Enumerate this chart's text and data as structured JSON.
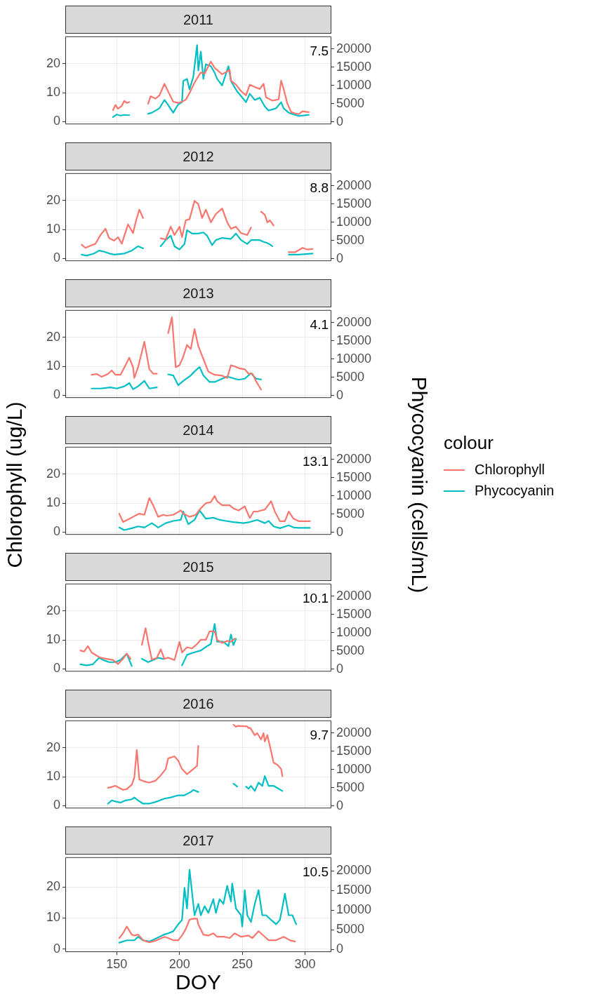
{
  "chart_data": [
    {
      "type": "line",
      "title": "2011",
      "xlim": [
        109,
        321
      ],
      "xticks": [
        150,
        200,
        250,
        300
      ],
      "ylim": [
        -0.9,
        29.5
      ],
      "yticks": [
        0,
        10,
        20
      ],
      "y2lim": [
        -700,
        23500
      ],
      "y2ticks": [
        0,
        5000,
        10000,
        15000,
        20000
      ],
      "grid": true,
      "tick_labels": "y",
      "annotations": [
        "7.5"
      ],
      "series": [
        {
          "color": "#f8766d",
          "x": [
            147,
            149,
            151,
            154,
            156,
            158,
            160,
            167,
            175,
            177,
            181,
            184,
            188,
            190,
            195,
            199,
            202,
            205,
            208,
            212,
            215,
            217,
            220,
            225,
            228,
            234,
            240,
            241,
            245,
            249,
            253,
            256,
            260,
            264,
            267,
            269,
            274,
            279,
            281,
            283,
            286,
            289,
            292,
            295,
            298,
            303
          ],
          "values": [
            4.0,
            5.8,
            4.5,
            5.5,
            7.2,
            6.5,
            6.8,
            null,
            6.2,
            8.8,
            8.0,
            9.1,
            13.1,
            11.3,
            6.9,
            6.5,
            6.9,
            7.6,
            9.9,
            13.5,
            15.7,
            17.0,
            16.6,
            20.8,
            18.6,
            16.4,
            17.9,
            14.2,
            12.8,
            10.6,
            9.1,
            12.8,
            12.0,
            11.3,
            13.1,
            8.4,
            7.3,
            7.7,
            14.2,
            11.3,
            6.2,
            3.3,
            2.9,
            2.6,
            3.6,
            3.3
          ]
        },
        {
          "color": "#00bfc4",
          "axis": "y2",
          "x": [
            147,
            150,
            153,
            156,
            160,
            167,
            175,
            178,
            184,
            188,
            190,
            195,
            199,
            202,
            203,
            206,
            208,
            211,
            214,
            215,
            217,
            219,
            221,
            225,
            228,
            230,
            234,
            239,
            241,
            246,
            249,
            253,
            256,
            260,
            264,
            268,
            271,
            277,
            281,
            283,
            287,
            292,
            295,
            303
          ],
          "values": [
            1300,
            2000,
            1700,
            1900,
            1800,
            null,
            2200,
            2500,
            3700,
            6000,
            5100,
            2500,
            4800,
            5400,
            11200,
            11800,
            8900,
            12400,
            21100,
            14100,
            19300,
            11800,
            15800,
            15300,
            13500,
            11800,
            10000,
            15300,
            11200,
            8300,
            7100,
            5400,
            7700,
            6000,
            6600,
            4200,
            3100,
            3700,
            5400,
            3700,
            2500,
            1900,
            1600,
            1900
          ]
        }
      ]
    },
    {
      "type": "line",
      "title": "2012",
      "xlim": [
        109,
        321
      ],
      "xticks": [
        150,
        200,
        250,
        300
      ],
      "ylim": [
        -0.9,
        29.5
      ],
      "yticks": [
        0,
        10,
        20
      ],
      "y2lim": [
        -700,
        23500
      ],
      "y2ticks": [
        0,
        5000,
        10000,
        15000,
        20000
      ],
      "grid": true,
      "tick_labels": "y",
      "annotations": [
        "8.8"
      ],
      "series": [
        {
          "color": "#f8766d",
          "x": [
            122,
            125,
            129,
            133,
            137,
            141,
            144,
            148,
            151,
            154,
            159,
            163,
            165,
            168,
            171,
            178,
            185,
            189,
            193,
            196,
            200,
            202,
            205,
            208,
            212,
            215,
            218,
            221,
            225,
            229,
            234,
            238,
            241,
            245,
            249,
            254,
            257,
            261,
            265,
            268,
            270,
            272,
            275,
            281,
            287,
            292,
            295,
            298,
            302,
            306
          ],
          "values": [
            4.8,
            3.7,
            4.4,
            5.1,
            8.1,
            10.3,
            7.0,
            6.2,
            7.4,
            5.1,
            11.8,
            8.8,
            12.5,
            16.9,
            14.0,
            null,
            7.0,
            6.6,
            11.0,
            8.1,
            11.0,
            7.4,
            13.2,
            13.6,
            19.9,
            18.8,
            14.0,
            16.9,
            12.5,
            15.4,
            17.3,
            12.5,
            10.3,
            11.0,
            8.8,
            8.1,
            10.7,
            null,
            16.2,
            15.1,
            12.5,
            13.2,
            11.4,
            null,
            2.2,
            2.2,
            2.9,
            3.7,
            3.1,
            3.3
          ]
        },
        {
          "color": "#00bfc4",
          "axis": "y2",
          "x": [
            122,
            126,
            132,
            136,
            140,
            144,
            148,
            151,
            156,
            162,
            167,
            171,
            178,
            185,
            189,
            193,
            196,
            200,
            204,
            206,
            210,
            215,
            219,
            222,
            226,
            229,
            234,
            241,
            245,
            249,
            254,
            257,
            264,
            267,
            269,
            272,
            274,
            281,
            287,
            295,
            306
          ],
          "values": [
            1100,
            800,
            1400,
            2200,
            1900,
            1400,
            1100,
            1200,
            1400,
            2200,
            3400,
            2800,
            null,
            3400,
            5100,
            6300,
            3400,
            2500,
            4000,
            7800,
            6900,
            6900,
            7200,
            6300,
            3700,
            5100,
            5700,
            5400,
            6900,
            5100,
            4000,
            5100,
            5100,
            4600,
            4400,
            3900,
            3400,
            null,
            1100,
            1100,
            1400
          ]
        }
      ]
    },
    {
      "type": "line",
      "title": "2013",
      "xlim": [
        109,
        321
      ],
      "xticks": [
        150,
        200,
        250,
        300
      ],
      "ylim": [
        -0.9,
        29.5
      ],
      "yticks": [
        0,
        10,
        20
      ],
      "y2lim": [
        -700,
        23500
      ],
      "y2ticks": [
        0,
        5000,
        10000,
        15000,
        20000
      ],
      "grid": true,
      "tick_labels": "y",
      "annotations": [
        "4.1"
      ],
      "series": [
        {
          "color": "#f8766d",
          "x": [
            130,
            134,
            138,
            143,
            146,
            149,
            153,
            157,
            160,
            163,
            164,
            167,
            172,
            176,
            179,
            182,
            187,
            191,
            194,
            197,
            200,
            203,
            206,
            209,
            212,
            215,
            219,
            223,
            228,
            234,
            238,
            241,
            244,
            248,
            252,
            255,
            258,
            261,
            265
          ],
          "values": [
            7.1,
            7.4,
            6.4,
            7.4,
            8.6,
            7.1,
            7.1,
            10.4,
            13.0,
            9.7,
            6.0,
            9.7,
            18.5,
            9.0,
            7.5,
            7.5,
            null,
            21.5,
            27.0,
            9.7,
            10.4,
            13.4,
            17.4,
            16.0,
            22.9,
            17.0,
            12.6,
            8.2,
            7.1,
            6.8,
            6.0,
            10.4,
            10.0,
            9.3,
            9.0,
            7.5,
            7.5,
            4.9,
            2.0
          ]
        },
        {
          "color": "#00bfc4",
          "axis": "y2",
          "x": [
            130,
            137,
            145,
            150,
            156,
            160,
            163,
            167,
            172,
            176,
            182,
            187,
            191,
            195,
            199,
            203,
            209,
            212,
            216,
            219,
            224,
            228,
            234,
            238,
            241,
            247,
            252,
            257,
            261,
            265
          ],
          "values": [
            1900,
            1900,
            2200,
            1900,
            2500,
            3400,
            1700,
            2500,
            4000,
            1900,
            2200,
            null,
            5800,
            5500,
            2800,
            4000,
            5500,
            6600,
            7800,
            5500,
            3700,
            3700,
            4600,
            5200,
            4900,
            4300,
            4600,
            6100,
            4600,
            4400
          ]
        }
      ]
    },
    {
      "type": "line",
      "title": "2014",
      "xlim": [
        109,
        321
      ],
      "xticks": [
        150,
        200,
        250,
        300
      ],
      "ylim": [
        -0.9,
        29.5
      ],
      "yticks": [
        0,
        10,
        20
      ],
      "y2lim": [
        -700,
        23500
      ],
      "y2ticks": [
        0,
        5000,
        10000,
        15000,
        20000
      ],
      "grid": true,
      "tick_labels": "y",
      "annotations": [
        "13.1"
      ],
      "ylabel": "Chlorophyll (ug/L)",
      "y2label": "Phycocyanin (cells/mL)",
      "legend": "right",
      "legend_title": "colour",
      "series": [
        {
          "name": "Chlorophyll",
          "color": "#f8766d",
          "x": [
            152,
            155,
            160,
            163,
            168,
            172,
            176,
            179,
            183,
            187,
            190,
            195,
            201,
            203,
            208,
            213,
            216,
            221,
            225,
            228,
            230,
            234,
            240,
            243,
            247,
            252,
            256,
            259,
            262,
            265,
            268,
            273,
            276,
            280,
            284,
            287,
            291,
            295,
            304
          ],
          "values": [
            6.4,
            3.5,
            4.6,
            5.3,
            6.4,
            6.0,
            11.8,
            9.3,
            5.3,
            6.0,
            5.7,
            6.0,
            7.5,
            6.4,
            5.3,
            6.0,
            7.8,
            10.0,
            10.4,
            12.5,
            10.7,
            9.3,
            9.3,
            8.2,
            7.5,
            8.9,
            4.9,
            7.1,
            7.1,
            7.5,
            7.8,
            10.7,
            7.1,
            3.8,
            3.8,
            7.1,
            4.6,
            3.8,
            3.8
          ]
        },
        {
          "name": "Phycocyanin",
          "color": "#00bfc4",
          "axis": "y2",
          "x": [
            152,
            156,
            162,
            167,
            172,
            178,
            183,
            189,
            195,
            201,
            203,
            207,
            212,
            216,
            221,
            227,
            232,
            237,
            243,
            251,
            256,
            262,
            268,
            271,
            275,
            280,
            287,
            291,
            295,
            304
          ],
          "values": [
            1300,
            600,
            1100,
            1600,
            1300,
            2500,
            1300,
            2500,
            3100,
            3400,
            5700,
            2200,
            3400,
            6000,
            3700,
            4000,
            3400,
            3100,
            2800,
            2500,
            2800,
            3400,
            2500,
            3100,
            1600,
            1100,
            1900,
            1300,
            1200,
            1200
          ]
        }
      ]
    },
    {
      "type": "line",
      "title": "2015",
      "xlim": [
        109,
        321
      ],
      "xticks": [
        150,
        200,
        250,
        300
      ],
      "ylim": [
        -0.9,
        29.5
      ],
      "yticks": [
        0,
        10,
        20
      ],
      "y2lim": [
        -700,
        23500
      ],
      "y2ticks": [
        0,
        5000,
        10000,
        15000,
        20000
      ],
      "grid": true,
      "tick_labels": "y",
      "annotations": [
        "10.1"
      ],
      "series": [
        {
          "color": "#f8766d",
          "x": [
            121,
            124,
            127,
            130,
            134,
            137,
            142,
            147,
            151,
            155,
            158,
            161,
            166,
            170,
            173,
            175,
            178,
            182,
            185,
            188,
            191,
            196,
            200,
            202,
            206,
            210,
            214,
            217,
            221,
            224,
            228,
            230,
            234,
            238,
            241,
            244
          ],
          "values": [
            6.4,
            6.0,
            7.9,
            5.7,
            4.6,
            3.9,
            3.5,
            3.1,
            1.7,
            3.5,
            5.3,
            3.5,
            null,
            8.3,
            14.1,
            9.4,
            3.2,
            3.9,
            6.8,
            3.5,
            3.9,
            3.1,
            9.4,
            5.7,
            7.5,
            7.1,
            8.6,
            10.1,
            10.1,
            13.0,
            13.0,
            10.1,
            9.0,
            9.7,
            9.4,
            10.5
          ]
        },
        {
          "color": "#00bfc4",
          "axis": "y2",
          "x": [
            121,
            126,
            131,
            136,
            139,
            144,
            149,
            153,
            158,
            162,
            166,
            170,
            175,
            179,
            183,
            187,
            195,
            202,
            206,
            211,
            217,
            222,
            225,
            228,
            230,
            235,
            239,
            241,
            243,
            245
          ],
          "values": [
            1300,
            1000,
            1300,
            3100,
            2500,
            1900,
            1900,
            2500,
            4200,
            800,
            null,
            2800,
            1900,
            2500,
            3100,
            2800,
            null,
            1000,
            3900,
            4500,
            5100,
            6300,
            6900,
            12400,
            7500,
            7500,
            6300,
            9500,
            6600,
            8300
          ]
        }
      ]
    },
    {
      "type": "line",
      "title": "2016",
      "xlim": [
        109,
        321
      ],
      "xticks": [
        150,
        200,
        250,
        300
      ],
      "ylim": [
        -0.9,
        29.5
      ],
      "yticks": [
        0,
        10,
        20
      ],
      "y2lim": [
        -700,
        23500
      ],
      "y2ticks": [
        0,
        5000,
        10000,
        15000,
        20000
      ],
      "grid": true,
      "tick_labels": "y",
      "annotations": [
        "9.7"
      ],
      "series": [
        {
          "color": "#f8766d",
          "x": [
            143,
            146,
            149,
            152,
            155,
            158,
            162,
            164,
            166,
            168,
            172,
            176,
            181,
            185,
            189,
            191,
            196,
            199,
            202,
            206,
            211,
            214,
            215,
            230,
            243,
            245,
            246,
            254,
            255,
            256,
            257,
            260,
            262,
            265,
            267,
            268,
            270,
            272,
            275,
            278,
            281,
            282
          ],
          "values": [
            6.2,
            6.5,
            6.9,
            6.2,
            5.5,
            5.8,
            7.3,
            9.8,
            19.3,
            9.1,
            8.4,
            8.0,
            8.7,
            10.5,
            12.7,
            16.4,
            17.1,
            15.6,
            12.7,
            10.9,
            12.7,
            13.8,
            20.7,
            null,
            28.0,
            27.3,
            27.6,
            27.4,
            26.8,
            27.0,
            26.5,
            24.4,
            25.1,
            22.9,
            25.1,
            22.2,
            24.4,
            20.7,
            14.9,
            14.2,
            12.7,
            10.2
          ]
        },
        {
          "color": "#00bfc4",
          "axis": "y2",
          "x": [
            143,
            146,
            149,
            153,
            157,
            162,
            164,
            167,
            171,
            176,
            182,
            188,
            193,
            199,
            204,
            209,
            211,
            215,
            230,
            243,
            246,
            250,
            253,
            255,
            257,
            260,
            263,
            266,
            268,
            271,
            275,
            279,
            282
          ],
          "values": [
            600,
            1500,
            1200,
            900,
            1500,
            1800,
            2300,
            1500,
            600,
            600,
            1200,
            2000,
            2300,
            2900,
            2900,
            3800,
            4400,
            3800,
            null,
            6100,
            5300,
            null,
            5300,
            4700,
            5500,
            4100,
            6400,
            5500,
            8200,
            5500,
            5500,
            4700,
            4100
          ]
        }
      ]
    },
    {
      "type": "line",
      "title": "2017",
      "xlim": [
        109,
        321
      ],
      "xticks": [
        150,
        200,
        250,
        300
      ],
      "ylim": [
        -0.9,
        29.5
      ],
      "yticks": [
        0,
        10,
        20
      ],
      "y2lim": [
        -700,
        23500
      ],
      "y2ticks": [
        0,
        5000,
        10000,
        15000,
        20000
      ],
      "grid": true,
      "annotations": [
        "10.5"
      ],
      "xlabel": "DOY",
      "series": [
        {
          "color": "#f8766d",
          "x": [
            152,
            155,
            158,
            162,
            164,
            167,
            171,
            176,
            182,
            188,
            191,
            195,
            199,
            202,
            205,
            208,
            211,
            214,
            215,
            219,
            223,
            227,
            230,
            236,
            240,
            244,
            249,
            255,
            258,
            263,
            268,
            271,
            277,
            283,
            288,
            292
          ],
          "values": [
            3.6,
            5.1,
            7.3,
            4.7,
            4.4,
            4.7,
            2.9,
            2.2,
            2.9,
            4.0,
            3.6,
            2.9,
            2.9,
            4.4,
            6.5,
            9.5,
            9.8,
            9.8,
            8.0,
            4.7,
            4.4,
            5.1,
            4.0,
            4.0,
            3.6,
            5.1,
            4.0,
            4.4,
            3.6,
            5.8,
            4.0,
            2.9,
            2.9,
            4.0,
            2.9,
            2.5
          ]
        },
        {
          "color": "#00bfc4",
          "axis": "y2",
          "x": [
            152,
            158,
            164,
            167,
            171,
            176,
            182,
            188,
            191,
            195,
            199,
            202,
            204,
            206,
            208,
            210,
            212,
            215,
            217,
            220,
            223,
            227,
            229,
            232,
            235,
            238,
            241,
            242,
            245,
            249,
            250,
            252,
            254,
            257,
            260,
            263,
            266,
            269,
            273,
            277,
            280,
            282,
            284,
            287,
            290,
            293
          ],
          "values": [
            1700,
            2300,
            2300,
            3200,
            2300,
            2000,
            2900,
            3800,
            4100,
            4600,
            6400,
            7500,
            15700,
            10400,
            20300,
            14500,
            8700,
            11600,
            8700,
            11000,
            9300,
            12800,
            9300,
            12800,
            11600,
            16200,
            12200,
            16800,
            10400,
            8700,
            5800,
            15100,
            8700,
            7000,
            11600,
            15100,
            8700,
            8700,
            7500,
            6400,
            7500,
            10700,
            14200,
            8700,
            8700,
            6400
          ]
        }
      ]
    }
  ]
}
